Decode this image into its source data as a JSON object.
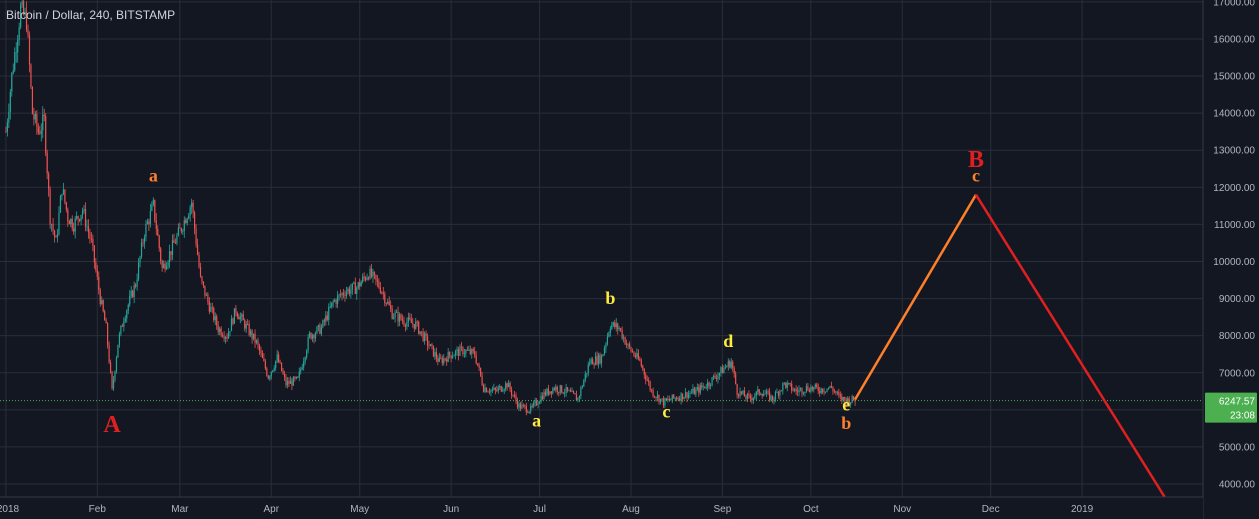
{
  "header": {
    "title": "Bitcoin / Dollar, 240, BITSTAMP"
  },
  "colors": {
    "background": "#131722",
    "grid": "#2a2e39",
    "axis_text": "#b2b5be",
    "candle_up": "#26a69a",
    "candle_down": "#ef5350",
    "price_line": "#4caf50",
    "wave_orange": "#ff7f2a",
    "wave_red": "#e02020",
    "wave_yellow": "#ffeb3b"
  },
  "price_tag": {
    "price": "6247.57",
    "countdown": "23:08"
  },
  "chart_data": {
    "type": "candlestick",
    "title": "Bitcoin / Dollar, 240, BITSTAMP",
    "x_ticks": [
      "2018",
      "Feb",
      "Mar",
      "Apr",
      "May",
      "Jun",
      "Jul",
      "Aug",
      "Sep",
      "Oct",
      "Nov",
      "Dec",
      "2019"
    ],
    "x_tick_dates": [
      "2018-01-01",
      "2018-02-01",
      "2018-03-01",
      "2018-04-01",
      "2018-05-01",
      "2018-06-01",
      "2018-07-01",
      "2018-08-01",
      "2018-09-01",
      "2018-10-01",
      "2018-11-01",
      "2018-12-01",
      "2019-01-01"
    ],
    "y_ticks": [
      "17000.00",
      "16000.00",
      "15000.00",
      "14000.00",
      "13000.00",
      "12000.00",
      "11000.00",
      "10000.00",
      "9000.00",
      "8000.00",
      "7000.00",
      "6000.00",
      "5000.00",
      "4000.00"
    ],
    "ylim": [
      3650,
      17050
    ],
    "grid": true,
    "last_price": 6247.57,
    "price_path": [
      [
        "2018-01-01",
        13500
      ],
      [
        "2018-01-03",
        15000
      ],
      [
        "2018-01-06",
        16800
      ],
      [
        "2018-01-08",
        16500
      ],
      [
        "2018-01-10",
        14000
      ],
      [
        "2018-01-12",
        13500
      ],
      [
        "2018-01-14",
        13800
      ],
      [
        "2018-01-16",
        11200
      ],
      [
        "2018-01-18",
        10500
      ],
      [
        "2018-01-20",
        12000
      ],
      [
        "2018-01-22",
        11200
      ],
      [
        "2018-01-24",
        11000
      ],
      [
        "2018-01-27",
        11400
      ],
      [
        "2018-01-30",
        10500
      ],
      [
        "2018-02-02",
        9000
      ],
      [
        "2018-02-04",
        8200
      ],
      [
        "2018-02-06",
        6500
      ],
      [
        "2018-02-08",
        7800
      ],
      [
        "2018-02-10",
        8500
      ],
      [
        "2018-02-14",
        9400
      ],
      [
        "2018-02-17",
        10800
      ],
      [
        "2018-02-20",
        11500
      ],
      [
        "2018-02-23",
        9800
      ],
      [
        "2018-02-26",
        10300
      ],
      [
        "2018-03-02",
        11000
      ],
      [
        "2018-03-05",
        11600
      ],
      [
        "2018-03-08",
        9500
      ],
      [
        "2018-03-11",
        8800
      ],
      [
        "2018-03-14",
        8200
      ],
      [
        "2018-03-17",
        8000
      ],
      [
        "2018-03-20",
        8700
      ],
      [
        "2018-03-23",
        8300
      ],
      [
        "2018-03-27",
        7800
      ],
      [
        "2018-03-31",
        6900
      ],
      [
        "2018-04-03",
        7400
      ],
      [
        "2018-04-06",
        6700
      ],
      [
        "2018-04-10",
        6800
      ],
      [
        "2018-04-14",
        8000
      ],
      [
        "2018-04-18",
        8200
      ],
      [
        "2018-04-22",
        8900
      ],
      [
        "2018-04-26",
        9200
      ],
      [
        "2018-04-30",
        9300
      ],
      [
        "2018-05-04",
        9700
      ],
      [
        "2018-05-08",
        9300
      ],
      [
        "2018-05-12",
        8600
      ],
      [
        "2018-05-16",
        8400
      ],
      [
        "2018-05-20",
        8300
      ],
      [
        "2018-05-24",
        7800
      ],
      [
        "2018-05-28",
        7300
      ],
      [
        "2018-06-01",
        7500
      ],
      [
        "2018-06-05",
        7600
      ],
      [
        "2018-06-09",
        7500
      ],
      [
        "2018-06-12",
        6600
      ],
      [
        "2018-06-16",
        6500
      ],
      [
        "2018-06-20",
        6700
      ],
      [
        "2018-06-24",
        6100
      ],
      [
        "2018-06-28",
        6000
      ],
      [
        "2018-07-02",
        6400
      ],
      [
        "2018-07-06",
        6600
      ],
      [
        "2018-07-10",
        6500
      ],
      [
        "2018-07-14",
        6300
      ],
      [
        "2018-07-18",
        7300
      ],
      [
        "2018-07-22",
        7400
      ],
      [
        "2018-07-25",
        8300
      ],
      [
        "2018-07-28",
        8200
      ],
      [
        "2018-07-31",
        7700
      ],
      [
        "2018-08-04",
        7300
      ],
      [
        "2018-08-08",
        6500
      ],
      [
        "2018-08-12",
        6200
      ],
      [
        "2018-08-15",
        6300
      ],
      [
        "2018-08-19",
        6400
      ],
      [
        "2018-08-23",
        6500
      ],
      [
        "2018-08-27",
        6700
      ],
      [
        "2018-08-31",
        7000
      ],
      [
        "2018-09-04",
        7300
      ],
      [
        "2018-09-06",
        6500
      ],
      [
        "2018-09-10",
        6300
      ],
      [
        "2018-09-14",
        6500
      ],
      [
        "2018-09-18",
        6300
      ],
      [
        "2018-09-22",
        6700
      ],
      [
        "2018-09-26",
        6500
      ],
      [
        "2018-09-30",
        6600
      ],
      [
        "2018-10-04",
        6550
      ],
      [
        "2018-10-08",
        6600
      ],
      [
        "2018-10-11",
        6300
      ],
      [
        "2018-10-14",
        6250
      ],
      [
        "2018-10-16",
        6280
      ]
    ],
    "projection": [
      {
        "from": [
          "2018-10-16",
          6280
        ],
        "to": [
          "2018-11-26",
          11800
        ],
        "color": "orange"
      },
      {
        "from": [
          "2018-11-26",
          11800
        ],
        "to": [
          "2019-01-29",
          3650
        ],
        "color": "red"
      }
    ],
    "annotations": [
      {
        "text": "A",
        "date": "2018-02-06",
        "price": 5400,
        "color": "red",
        "size": "large"
      },
      {
        "text": "a",
        "date": "2018-02-20",
        "price": 12150,
        "color": "orange",
        "size": "small"
      },
      {
        "text": "b",
        "date": "2018-07-25",
        "price": 8850,
        "color": "yellow",
        "size": "small"
      },
      {
        "text": "a",
        "date": "2018-06-30",
        "price": 5550,
        "color": "yellow",
        "size": "small"
      },
      {
        "text": "c",
        "date": "2018-08-13",
        "price": 5800,
        "color": "yellow",
        "size": "small"
      },
      {
        "text": "d",
        "date": "2018-09-03",
        "price": 7700,
        "color": "yellow",
        "size": "small"
      },
      {
        "text": "e",
        "date": "2018-10-13",
        "price": 5980,
        "color": "yellow",
        "size": "small"
      },
      {
        "text": "b",
        "date": "2018-10-13",
        "price": 5480,
        "color": "orange",
        "size": "small"
      },
      {
        "text": "B",
        "date": "2018-11-26",
        "price": 12550,
        "color": "red",
        "size": "large"
      },
      {
        "text": "c",
        "date": "2018-11-26",
        "price": 12150,
        "color": "orange",
        "size": "small"
      }
    ]
  }
}
